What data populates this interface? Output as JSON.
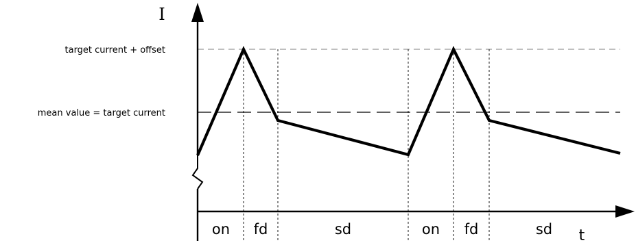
{
  "diagram": {
    "y_axis_label": "I",
    "x_axis_label": "t",
    "levels": {
      "upper": "target current + offset",
      "mean": "mean value = target current"
    },
    "phases": [
      "on",
      "fd",
      "sd",
      "on",
      "fd",
      "sd"
    ]
  }
}
